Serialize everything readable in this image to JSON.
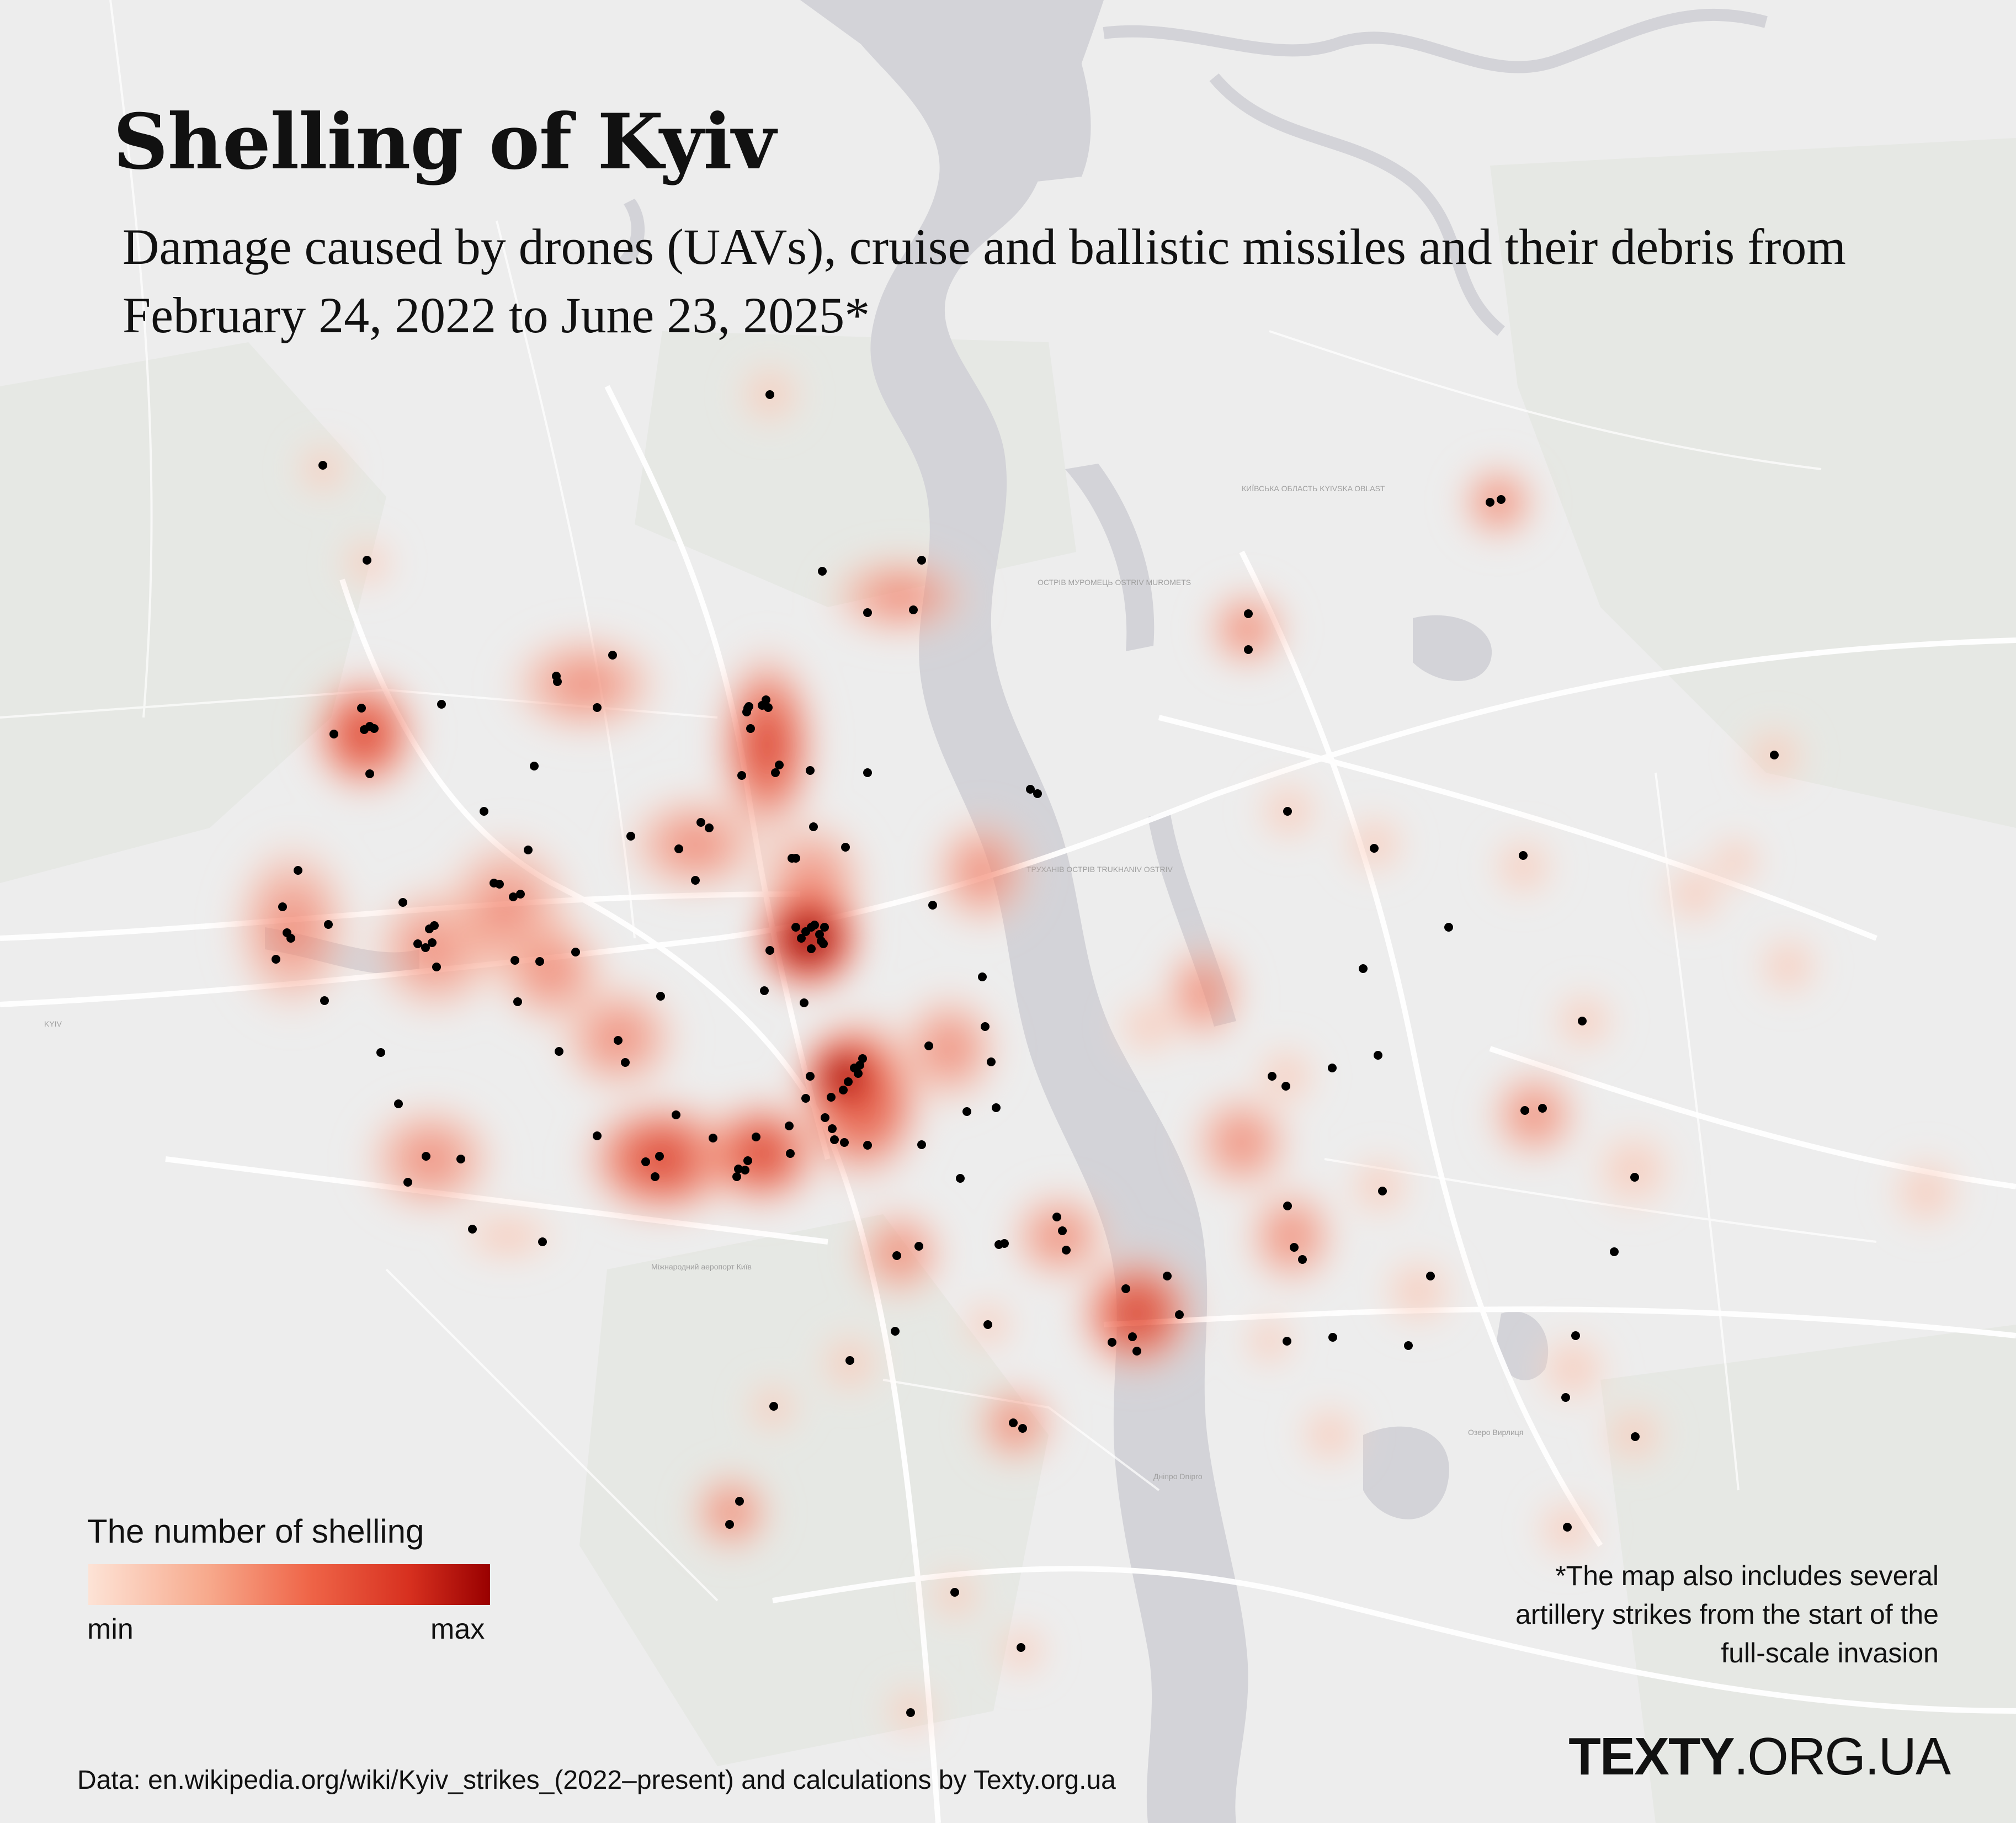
{
  "map": {
    "title": "Shelling of Kyiv",
    "subtitle": "Damage caused by drones (UAVs), cruise and ballistic missiles and their debris from February 24, 2022 to June 23, 2025*",
    "legend": {
      "title": "The number of shelling",
      "min_label": "min",
      "max_label": "max",
      "colors": [
        "#fde3d6",
        "#f7a98c",
        "#ef6548",
        "#d7301f",
        "#990000"
      ]
    },
    "footnote": "*The map also includes several artillery strikes from the start of the full-scale invasion",
    "logo_bold": "TEXTY",
    "logo_rest": ".ORG.UA",
    "source": "Data: en.wikipedia.org/wiki/Kyiv_strikes_(2022–present) and calculations by Texty.org.ua",
    "basemap_labels": [
      "КИЇВСЬКА ОБЛАСТЬ KYIVSKA OBLAST",
      "ОСТРІВ МУРОМЕЦЬ OSTRIV MUROMETS",
      "ТРУХАНІВ ОСТРІВ TRUKHANIV OSTRIV",
      "KYIV",
      "Міжнародний аеропорт Київ",
      "Озеро Вирлиця",
      "Дніпро Dnipro"
    ],
    "colors": {
      "background": "#ededed",
      "river": "#d2d2d6",
      "roads": "#ffffff",
      "heat_low": "#fde3d6",
      "heat_high": "#990000",
      "points": "#000000"
    }
  }
}
